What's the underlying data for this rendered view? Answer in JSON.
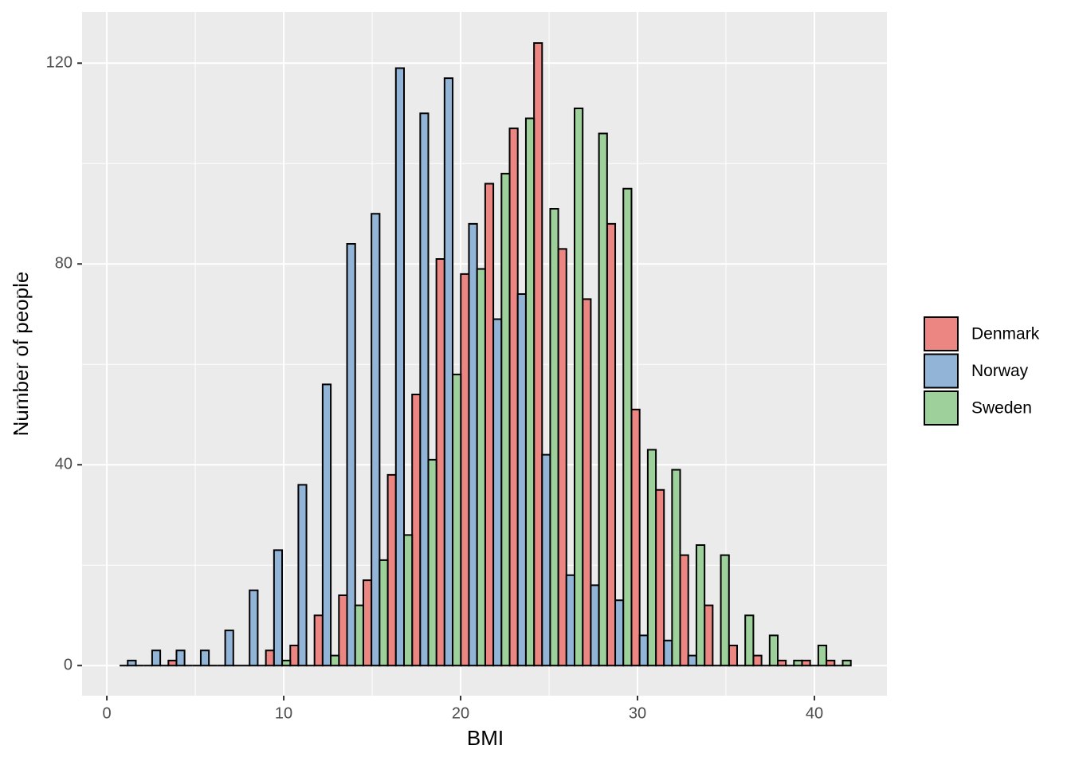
{
  "chart_data": {
    "type": "histogram",
    "xlabel": "BMI",
    "ylabel": "Number of people",
    "bins": [
      0.72,
      2.1,
      3.48,
      4.85,
      6.23,
      7.61,
      8.99,
      10.37,
      11.74,
      13.12,
      14.5,
      15.88,
      17.26,
      18.63,
      20.01,
      21.39,
      22.77,
      24.15,
      25.52,
      26.9,
      28.28,
      29.66,
      31.04,
      32.41,
      33.79,
      35.17,
      36.55,
      37.93,
      39.3,
      40.68,
      42.06
    ],
    "series": [
      {
        "name": "Denmark",
        "color": "#ec8683",
        "values": [
          0,
          0,
          1,
          0,
          0,
          0,
          3,
          4,
          10,
          14,
          17,
          38,
          54,
          81,
          78,
          96,
          107,
          124,
          83,
          73,
          88,
          51,
          35,
          22,
          12,
          4,
          2,
          1,
          1,
          1
        ]
      },
      {
        "name": "Norway",
        "color": "#92b4d6",
        "values": [
          1,
          3,
          3,
          3,
          7,
          15,
          23,
          36,
          56,
          84,
          90,
          119,
          110,
          117,
          88,
          69,
          74,
          42,
          18,
          16,
          13,
          6,
          5,
          2,
          0,
          0,
          0,
          0,
          0,
          0
        ]
      },
      {
        "name": "Sweden",
        "color": "#9dd09a",
        "values": [
          0,
          0,
          0,
          0,
          0,
          0,
          1,
          0,
          2,
          12,
          21,
          26,
          41,
          58,
          79,
          98,
          109,
          91,
          111,
          106,
          95,
          43,
          39,
          24,
          22,
          10,
          6,
          1,
          4,
          1
        ]
      }
    ],
    "xlim": [
      -1.4,
      44.1
    ],
    "xticks": [
      0,
      10,
      20,
      30,
      40
    ],
    "ylim": [
      -6,
      130.2
    ],
    "yticks": [
      0,
      40,
      80,
      120
    ],
    "grid": true,
    "legend": "right"
  }
}
